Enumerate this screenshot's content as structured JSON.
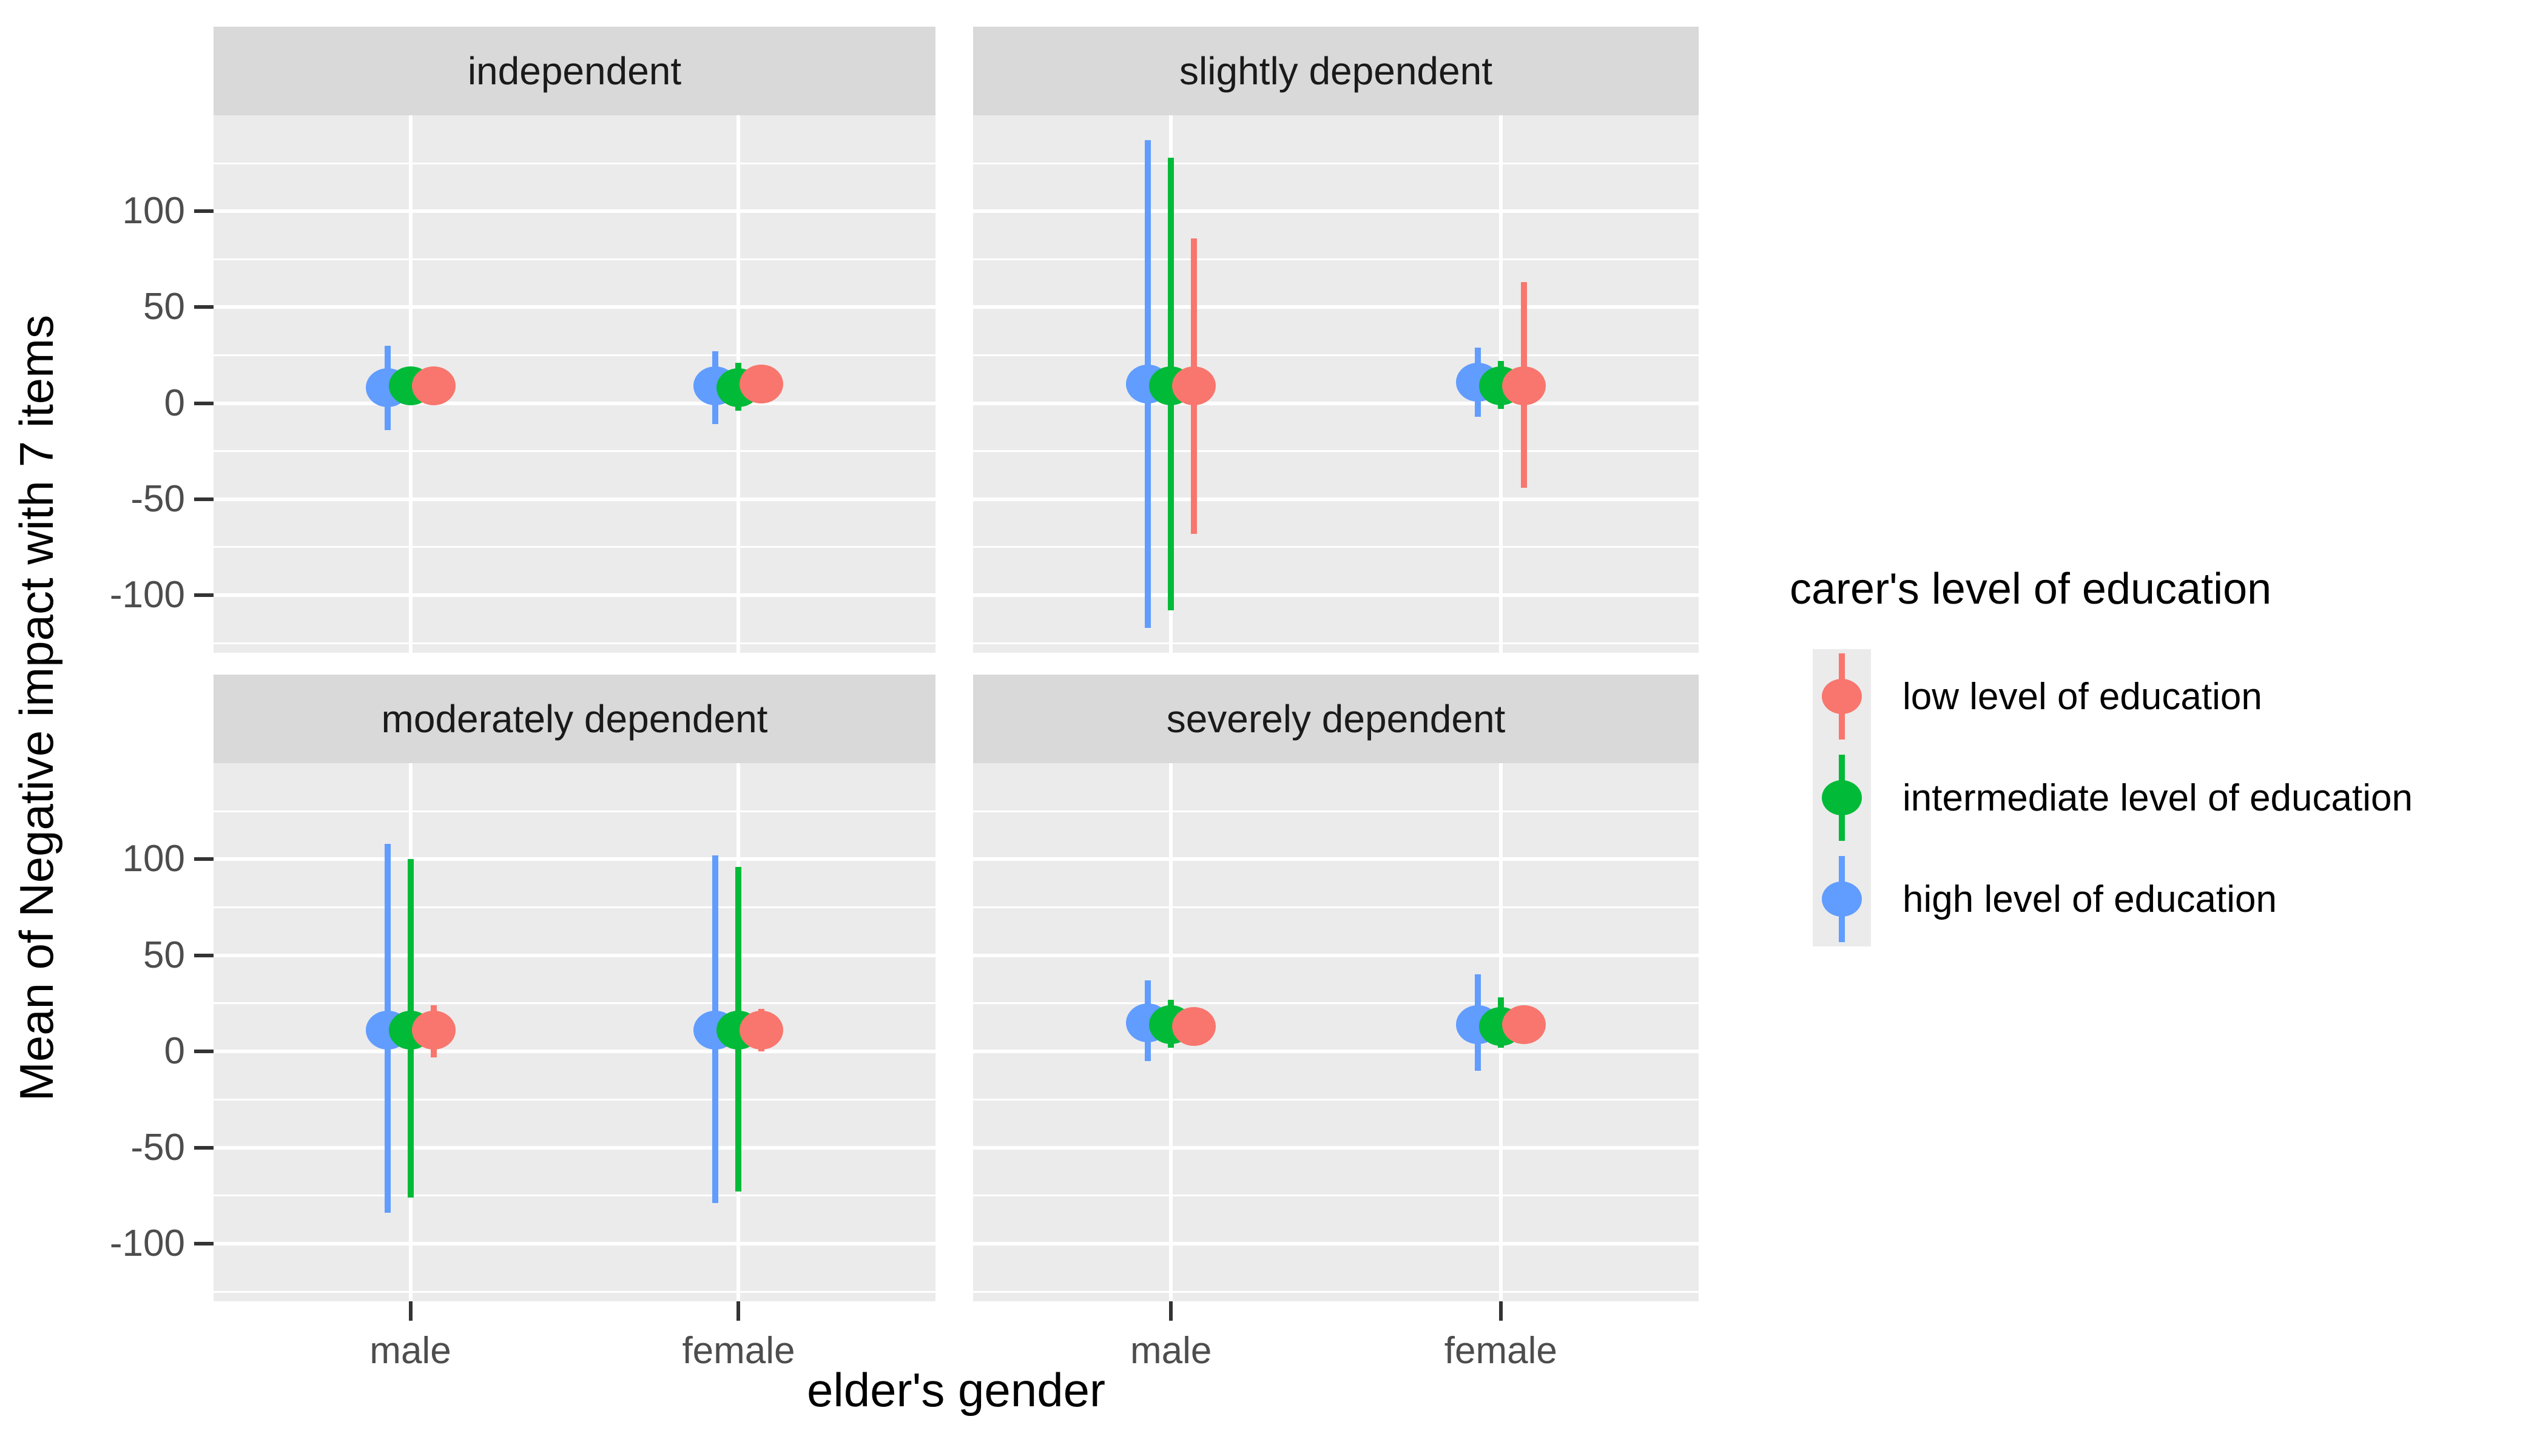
{
  "figure": {
    "xlabel": "elder's gender",
    "ylabel": "Mean of Negative impact with 7 items"
  },
  "chart_data": {
    "type": "pointrange",
    "facet_variable_titles": [
      "independent",
      "slightly dependent",
      "moderately dependent",
      "severely dependent"
    ],
    "x_categories": [
      "male",
      "female"
    ],
    "xlabel": "elder's gender",
    "ylabel": "Mean of Negative impact with 7 items",
    "ylim": [
      -130,
      150
    ],
    "yticks": [
      100,
      50,
      0,
      -50,
      -100
    ],
    "yticks_minor": [
      125,
      75,
      25,
      -25,
      -75,
      -125
    ],
    "grid": {
      "major": "on",
      "minor": "on"
    },
    "panel_bg": "#ebebeb",
    "strip_bg": "#d9d9d9",
    "colors": {
      "low": "#F8766D",
      "intermediate": "#00BA38",
      "high": "#619CFF"
    },
    "dodge_order": [
      "high",
      "intermediate",
      "low"
    ],
    "legend": {
      "title": "carer's level of education",
      "position": "right",
      "items": [
        {
          "key": "low",
          "label": "low level of education",
          "color": "#F8766D"
        },
        {
          "key": "intermediate",
          "label": "intermediate level of education",
          "color": "#00BA38"
        },
        {
          "key": "high",
          "label": "high level of education",
          "color": "#619CFF"
        }
      ]
    },
    "facets": [
      {
        "title": "independent",
        "row": 0,
        "col": 0,
        "points": [
          {
            "x": "male",
            "series": "high",
            "y": 8,
            "ymin": -14,
            "ymax": 30
          },
          {
            "x": "male",
            "series": "intermediate",
            "y": 9,
            "ymin": null,
            "ymax": null
          },
          {
            "x": "male",
            "series": "low",
            "y": 9,
            "ymin": null,
            "ymax": null
          },
          {
            "x": "female",
            "series": "high",
            "y": 9,
            "ymin": -11,
            "ymax": 27
          },
          {
            "x": "female",
            "series": "intermediate",
            "y": 8,
            "ymin": -4,
            "ymax": 21
          },
          {
            "x": "female",
            "series": "low",
            "y": 10,
            "ymin": null,
            "ymax": null
          }
        ]
      },
      {
        "title": "slightly dependent",
        "row": 0,
        "col": 1,
        "points": [
          {
            "x": "male",
            "series": "high",
            "y": 10,
            "ymin": -117,
            "ymax": 137
          },
          {
            "x": "male",
            "series": "intermediate",
            "y": 9,
            "ymin": -108,
            "ymax": 128
          },
          {
            "x": "male",
            "series": "low",
            "y": 9,
            "ymin": -68,
            "ymax": 86
          },
          {
            "x": "female",
            "series": "high",
            "y": 11,
            "ymin": -7,
            "ymax": 29
          },
          {
            "x": "female",
            "series": "intermediate",
            "y": 9,
            "ymin": -3,
            "ymax": 22
          },
          {
            "x": "female",
            "series": "low",
            "y": 9,
            "ymin": -44,
            "ymax": 63
          }
        ]
      },
      {
        "title": "moderately dependent",
        "row": 1,
        "col": 0,
        "points": [
          {
            "x": "male",
            "series": "high",
            "y": 11,
            "ymin": -84,
            "ymax": 108
          },
          {
            "x": "male",
            "series": "intermediate",
            "y": 11,
            "ymin": -76,
            "ymax": 100
          },
          {
            "x": "male",
            "series": "low",
            "y": 11,
            "ymin": -3,
            "ymax": 24
          },
          {
            "x": "female",
            "series": "high",
            "y": 11,
            "ymin": -79,
            "ymax": 102
          },
          {
            "x": "female",
            "series": "intermediate",
            "y": 11,
            "ymin": -73,
            "ymax": 96
          },
          {
            "x": "female",
            "series": "low",
            "y": 11,
            "ymin": 0,
            "ymax": 22
          }
        ]
      },
      {
        "title": "severely dependent",
        "row": 1,
        "col": 1,
        "points": [
          {
            "x": "male",
            "series": "high",
            "y": 15,
            "ymin": -5,
            "ymax": 37
          },
          {
            "x": "male",
            "series": "intermediate",
            "y": 14,
            "ymin": 2,
            "ymax": 27
          },
          {
            "x": "male",
            "series": "low",
            "y": 13,
            "ymin": null,
            "ymax": null
          },
          {
            "x": "female",
            "series": "high",
            "y": 14,
            "ymin": -10,
            "ymax": 40
          },
          {
            "x": "female",
            "series": "intermediate",
            "y": 13,
            "ymin": 2,
            "ymax": 28
          },
          {
            "x": "female",
            "series": "low",
            "y": 14,
            "ymin": null,
            "ymax": null
          }
        ]
      }
    ]
  }
}
